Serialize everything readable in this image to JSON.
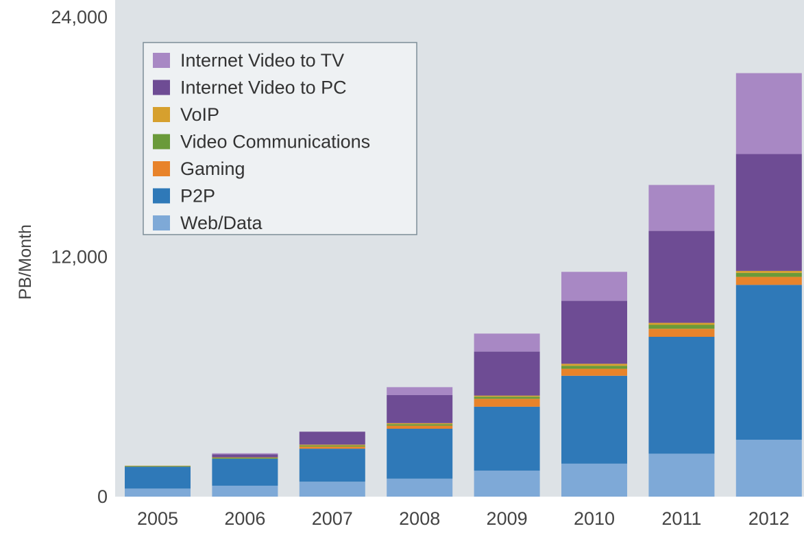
{
  "chart_data": {
    "type": "bar",
    "stacked": true,
    "categories": [
      "2005",
      "2006",
      "2007",
      "2008",
      "2009",
      "2010",
      "2011",
      "2012"
    ],
    "ylabel": "PB/Month",
    "ylim": [
      0,
      24000
    ],
    "yticks": [
      "0",
      "12,000",
      "24,000"
    ],
    "yticks_values": [
      0,
      12000,
      24000
    ],
    "grid": false,
    "legend_position": "top-left",
    "series": [
      {
        "name": "Web/Data",
        "color": "#7ea9d7",
        "values": [
          400,
          550,
          750,
          900,
          1300,
          1650,
          2150,
          2850
        ]
      },
      {
        "name": "P2P",
        "color": "#2f79b8",
        "values": [
          1100,
          1350,
          1650,
          2500,
          3200,
          4400,
          5850,
          7750
        ]
      },
      {
        "name": "Gaming",
        "color": "#e8832a",
        "values": [
          0,
          0,
          100,
          150,
          400,
          350,
          400,
          400
        ]
      },
      {
        "name": "Video Communications",
        "color": "#6a9a3a",
        "values": [
          30,
          40,
          60,
          80,
          100,
          150,
          200,
          200
        ]
      },
      {
        "name": "VoIP",
        "color": "#d6a02e",
        "values": [
          20,
          30,
          40,
          50,
          60,
          100,
          100,
          100
        ]
      },
      {
        "name": "Internet Video to PC",
        "color": "#6e4c94",
        "values": [
          0,
          150,
          650,
          1400,
          2200,
          3150,
          4600,
          5850
        ]
      },
      {
        "name": "Internet Video to TV",
        "color": "#a888c4",
        "values": [
          0,
          50,
          0,
          400,
          900,
          1450,
          2300,
          4050
        ]
      }
    ]
  }
}
